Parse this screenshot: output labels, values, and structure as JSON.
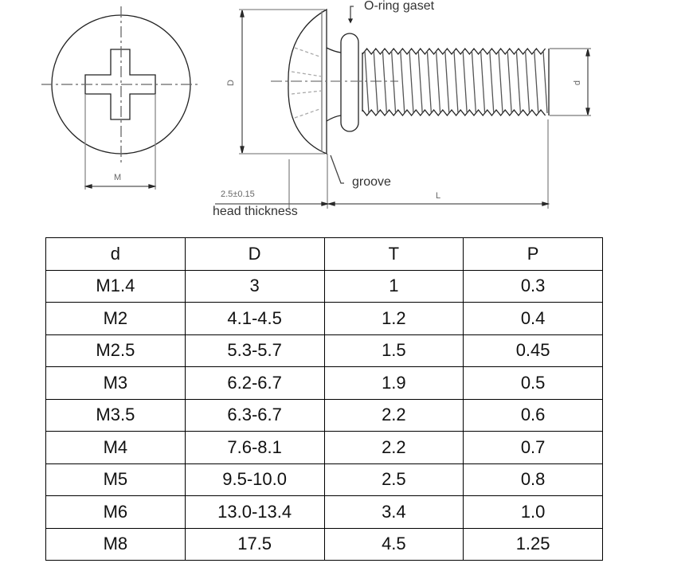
{
  "drawing": {
    "labels": {
      "oring": "O-ring gaset",
      "groove": "groove",
      "head_thickness_value": "2.5±0.15",
      "head_thickness": "head thickness",
      "L": "L",
      "M": "M",
      "D": "D",
      "d": "d"
    }
  },
  "table": {
    "headers": [
      "d",
      "D",
      "T",
      "P"
    ],
    "rows": [
      [
        "M1.4",
        "3",
        "1",
        "0.3"
      ],
      [
        "M2",
        "4.1-4.5",
        "1.2",
        "0.4"
      ],
      [
        "M2.5",
        "5.3-5.7",
        "1.5",
        "0.45"
      ],
      [
        "M3",
        "6.2-6.7",
        "1.9",
        "0.5"
      ],
      [
        "M3.5",
        "6.3-6.7",
        "2.2",
        "0.6"
      ],
      [
        "M4",
        "7.6-8.1",
        "2.2",
        "0.7"
      ],
      [
        "M5",
        "9.5-10.0",
        "2.5",
        "0.8"
      ],
      [
        "M6",
        "13.0-13.4",
        "3.4",
        "1.0"
      ],
      [
        "M8",
        "17.5",
        "4.5",
        "1.25"
      ]
    ]
  }
}
